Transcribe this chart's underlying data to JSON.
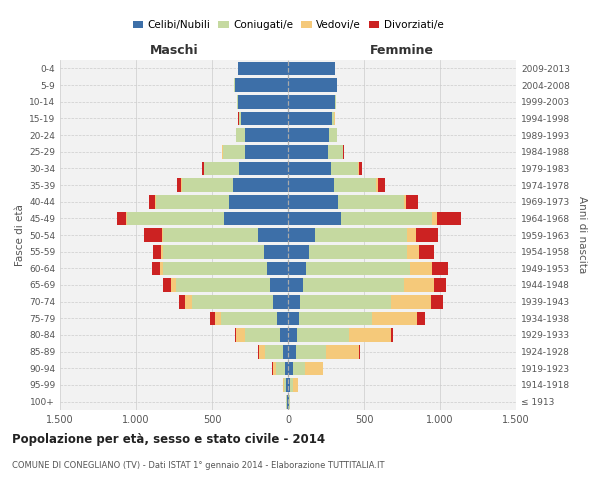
{
  "age_groups": [
    "100+",
    "95-99",
    "90-94",
    "85-89",
    "80-84",
    "75-79",
    "70-74",
    "65-69",
    "60-64",
    "55-59",
    "50-54",
    "45-49",
    "40-44",
    "35-39",
    "30-34",
    "25-29",
    "20-24",
    "15-19",
    "10-14",
    "5-9",
    "0-4"
  ],
  "birth_years": [
    "≤ 1913",
    "1914-1918",
    "1919-1923",
    "1924-1928",
    "1929-1933",
    "1934-1938",
    "1939-1943",
    "1944-1948",
    "1949-1953",
    "1954-1958",
    "1959-1963",
    "1964-1968",
    "1969-1973",
    "1974-1978",
    "1979-1983",
    "1984-1988",
    "1989-1993",
    "1994-1998",
    "1999-2003",
    "2004-2008",
    "2009-2013"
  ],
  "male": {
    "celibe": [
      5,
      10,
      20,
      30,
      50,
      70,
      100,
      120,
      140,
      160,
      200,
      420,
      390,
      360,
      320,
      280,
      280,
      310,
      330,
      350,
      330
    ],
    "coniugato": [
      5,
      15,
      60,
      120,
      230,
      370,
      530,
      620,
      680,
      660,
      620,
      640,
      480,
      340,
      230,
      150,
      60,
      15,
      5,
      2,
      1
    ],
    "vedovo": [
      1,
      5,
      20,
      40,
      60,
      40,
      50,
      30,
      20,
      15,
      10,
      8,
      5,
      3,
      2,
      1,
      1,
      0,
      0,
      0,
      0
    ],
    "divorziato": [
      0,
      0,
      2,
      5,
      8,
      30,
      40,
      55,
      55,
      50,
      120,
      60,
      40,
      30,
      15,
      5,
      2,
      1,
      0,
      0,
      0
    ]
  },
  "female": {
    "nubile": [
      5,
      15,
      30,
      50,
      60,
      70,
      80,
      100,
      120,
      140,
      180,
      350,
      330,
      300,
      280,
      260,
      270,
      290,
      310,
      320,
      310
    ],
    "coniugata": [
      5,
      20,
      80,
      200,
      340,
      480,
      600,
      660,
      680,
      640,
      600,
      600,
      430,
      280,
      180,
      100,
      50,
      15,
      5,
      2,
      1
    ],
    "vedova": [
      5,
      30,
      120,
      220,
      280,
      300,
      260,
      200,
      150,
      80,
      60,
      30,
      15,
      10,
      5,
      3,
      2,
      1,
      0,
      0,
      0
    ],
    "divorziata": [
      0,
      0,
      2,
      5,
      10,
      50,
      80,
      80,
      100,
      100,
      150,
      160,
      80,
      50,
      20,
      8,
      3,
      1,
      0,
      0,
      0
    ]
  },
  "colors": {
    "celibe": "#3d6fa8",
    "coniugato": "#c5d9a0",
    "vedovo": "#f5c97a",
    "divorziato": "#cc2222"
  },
  "xlim": 1500,
  "title": "Popolazione per età, sesso e stato civile - 2014",
  "subtitle": "COMUNE DI CONEGLIANO (TV) - Dati ISTAT 1° gennaio 2014 - Elaborazione TUTTITALIA.IT",
  "xlabel_left": "Maschi",
  "xlabel_right": "Femmine",
  "ylabel_left": "Fasce di età",
  "ylabel_right": "Anni di nascita",
  "bg_color": "#f2f2f2",
  "grid_color": "#cccccc"
}
